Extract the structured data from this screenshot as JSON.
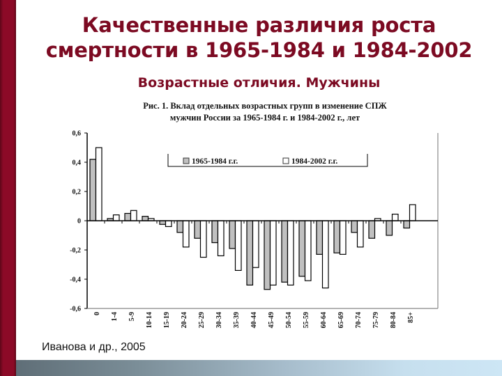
{
  "slide": {
    "title_line1": "Качественные различия роста",
    "title_line2": "смертности в 1965-1984 и 1984-2002",
    "subtitle": "Возрастные отличия. Мужчины",
    "citation": "Иванова и др., 2005",
    "colors": {
      "title": "#7c0a22",
      "left_bar": "#8c0a27",
      "bar_1965_1984": "#c0c0c0",
      "bar_1984_2002": "#ffffff"
    }
  },
  "chart_data": {
    "type": "bar",
    "title": "Рис. 1. Вклад отдельных возрастных групп в изменение СПЖ мужчин России за 1965-1984 г. и 1984-2002 г., лет",
    "title_line1": "Рис. 1. Вклад отдельных возрастных групп в изменение СПЖ",
    "title_line2": "мужчин России за 1965-1984 г. и 1984-2002 г., лет",
    "xlabel": "",
    "ylabel": "",
    "ylim": [
      -0.6,
      0.6
    ],
    "yticks": [
      "0,6",
      "0,4",
      "0,2",
      "0",
      "-0,2",
      "-0,4",
      "-0,6"
    ],
    "ytick_values": [
      0.6,
      0.4,
      0.2,
      0,
      -0.2,
      -0.4,
      -0.6
    ],
    "grid": false,
    "legend_position": "top-center",
    "categories": [
      "0",
      "1-4",
      "5-9",
      "10-14",
      "15-19",
      "20-24",
      "25-29",
      "30-34",
      "35-39",
      "40-44",
      "45-49",
      "50-54",
      "55-59",
      "60-64",
      "65-69",
      "70-74",
      "75-79",
      "80-84",
      "85+"
    ],
    "series": [
      {
        "name": "1965-1984 г.г.",
        "color": "#c0c0c0",
        "values": [
          0.42,
          0.015,
          0.05,
          0.03,
          -0.025,
          -0.08,
          -0.12,
          -0.15,
          -0.19,
          -0.44,
          -0.47,
          -0.42,
          -0.38,
          -0.23,
          -0.22,
          -0.08,
          -0.12,
          -0.1,
          -0.05
        ]
      },
      {
        "name": "1984-2002 г.г.",
        "color": "#ffffff",
        "values": [
          0.5,
          0.04,
          0.07,
          0.015,
          -0.04,
          -0.18,
          -0.25,
          -0.24,
          -0.34,
          -0.32,
          -0.44,
          -0.44,
          -0.41,
          -0.46,
          -0.23,
          -0.18,
          0.015,
          0.045,
          0.11
        ]
      }
    ]
  }
}
